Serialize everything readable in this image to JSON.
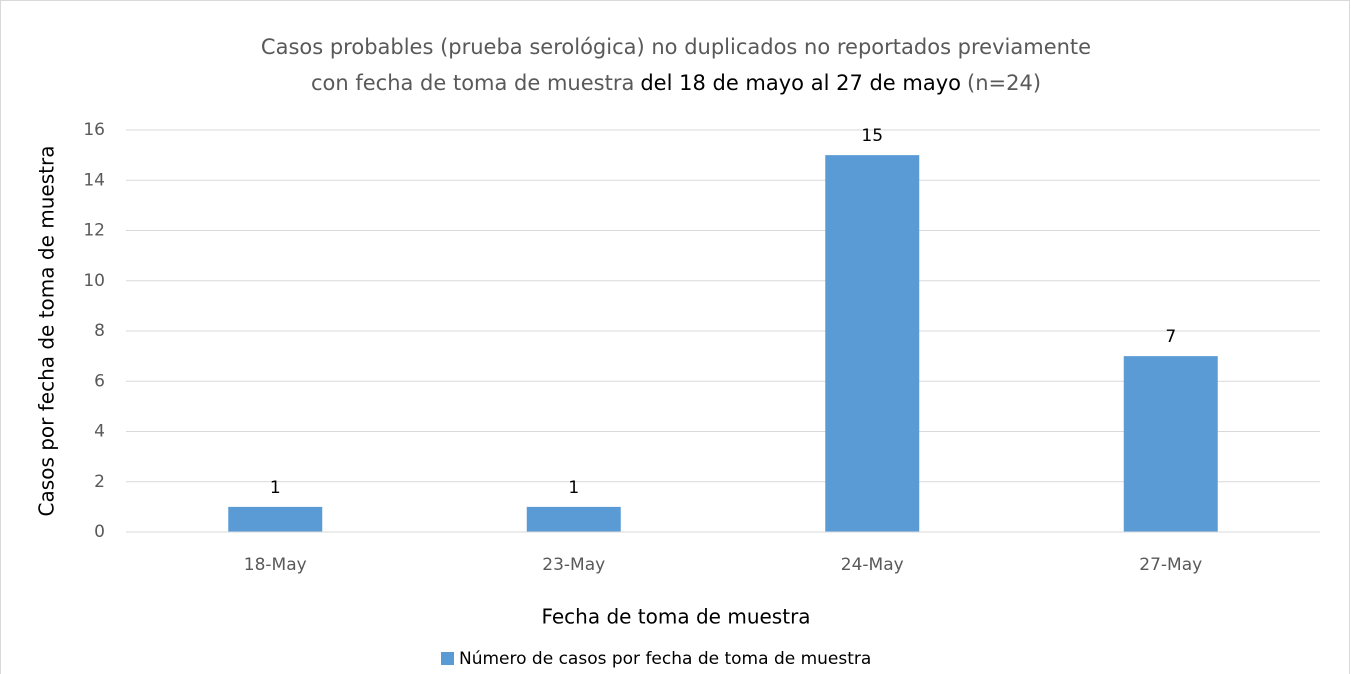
{
  "chart_data": {
    "type": "bar",
    "title": [
      "Casos probables (prueba serológica) no duplicados no reportados previamente",
      "con fecha de toma de muestra",
      "del 18 de mayo al 27 de mayo",
      "(n=24)"
    ],
    "x_label": "Fecha de toma de muestra",
    "y_label": "Casos por fecha de toma de muestra",
    "categories": [
      "18-May",
      "23-May",
      "24-May",
      "27-May"
    ],
    "series": [
      {
        "name": "Número de casos por fecha de toma de muestra",
        "color": "#5b9bd5",
        "values": [
          1,
          1,
          15,
          7
        ]
      }
    ],
    "ylim": [
      0,
      16
    ],
    "yticks": [
      0,
      2,
      4,
      6,
      8,
      10,
      12,
      14,
      16
    ],
    "grid": true,
    "legend": "bottom"
  }
}
